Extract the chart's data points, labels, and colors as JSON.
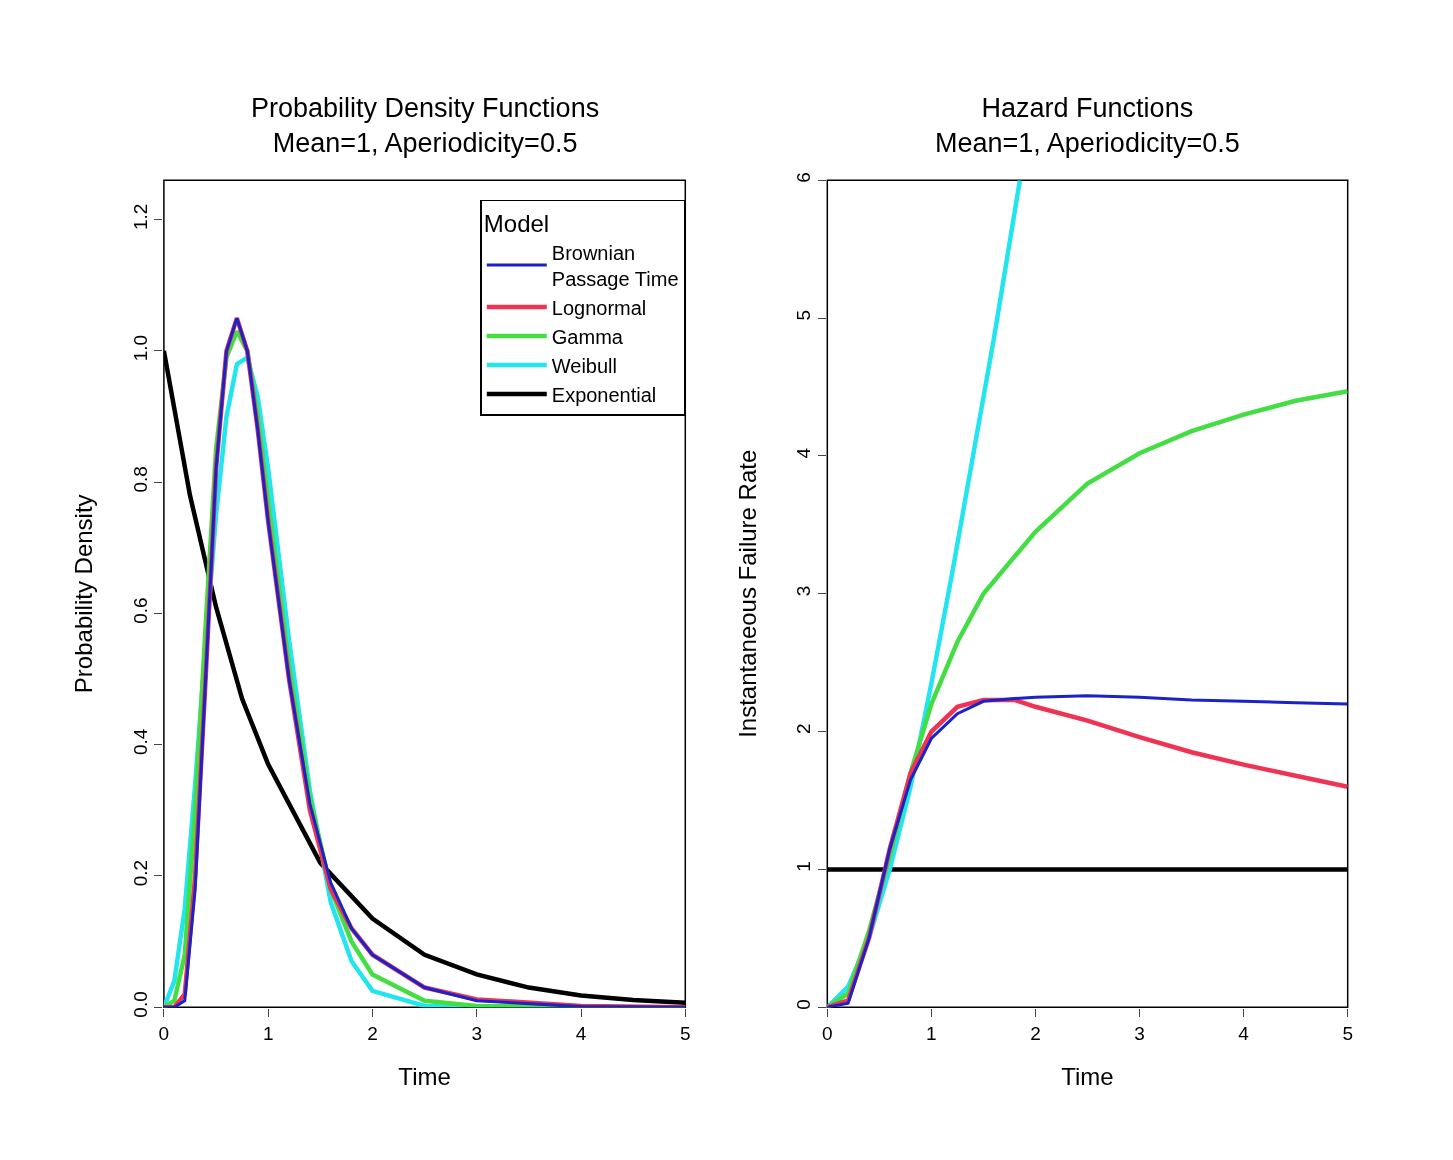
{
  "chart_data": [
    {
      "type": "line",
      "title": "Probability Density Functions\nMean=1, Aperiodicity=0.5",
      "xlabel": "Time",
      "ylabel": "Probability Density",
      "xlim": [
        0,
        5
      ],
      "ylim": [
        0,
        1.26
      ],
      "xticks": [
        0,
        1,
        2,
        3,
        4,
        5
      ],
      "yticks": [
        {
          "value": 0,
          "label": "0.0"
        },
        {
          "value": 0.2,
          "label": "0.2"
        },
        {
          "value": 0.4,
          "label": "0.4"
        },
        {
          "value": 0.6,
          "label": "0.6"
        },
        {
          "value": 0.8,
          "label": "0.8"
        },
        {
          "value": 1.0,
          "label": "1.0"
        },
        {
          "value": 1.2,
          "label": "1.2"
        }
      ],
      "grid": false,
      "legend": "top right",
      "legend_title": "Model",
      "marker": "none",
      "line_style": "solid",
      "x": [
        0,
        0.1,
        0.2,
        0.3,
        0.4,
        0.5,
        0.6,
        0.7,
        0.8,
        0.9,
        1.0,
        1.2,
        1.4,
        1.6,
        1.8,
        2.0,
        2.5,
        3,
        4,
        5
      ],
      "series": [
        {
          "name": "Brownian\nPassage Time",
          "color": "#1a23c8",
          "values": [
            0,
            0,
            0.01,
            0.18,
            0.5,
            0.82,
            1.0,
            1.05,
            1.0,
            0.88,
            0.74,
            0.5,
            0.31,
            0.19,
            0.12,
            0.08,
            0.03,
            0.01,
            0.001,
            0
          ]
        },
        {
          "name": "Lognormal",
          "color": "#ee3355",
          "values": [
            0,
            0,
            0.02,
            0.2,
            0.5,
            0.82,
            1.0,
            1.05,
            1.0,
            0.88,
            0.74,
            0.5,
            0.3,
            0.18,
            0.12,
            0.08,
            0.03,
            0.012,
            0.002,
            0
          ]
        },
        {
          "name": "Gamma",
          "color": "#44dd44",
          "values": [
            0,
            0.01,
            0.08,
            0.3,
            0.58,
            0.85,
            0.99,
            1.03,
            1.0,
            0.9,
            0.77,
            0.52,
            0.32,
            0.18,
            0.1,
            0.05,
            0.01,
            0.002,
            0,
            0
          ]
        },
        {
          "name": "Weibull",
          "color": "#22e5ee",
          "values": [
            0,
            0.04,
            0.15,
            0.34,
            0.55,
            0.75,
            0.9,
            0.98,
            0.99,
            0.93,
            0.82,
            0.56,
            0.33,
            0.16,
            0.07,
            0.025,
            0.002,
            0,
            0,
            0
          ]
        },
        {
          "name": "Exponential",
          "color": "#000000",
          "x": [
            0,
            0.25,
            0.5,
            0.75,
            1,
            1.5,
            2,
            2.5,
            3,
            3.5,
            4,
            4.5,
            5
          ],
          "values": [
            1,
            0.78,
            0.61,
            0.47,
            0.37,
            0.22,
            0.135,
            0.08,
            0.05,
            0.03,
            0.018,
            0.011,
            0.007
          ]
        }
      ]
    },
    {
      "type": "line",
      "title": "Hazard Functions\nMean=1, Aperiodicity=0.5",
      "xlabel": "Time",
      "ylabel": "Instantaneous Failure Rate",
      "xlim": [
        0,
        5
      ],
      "ylim": [
        0,
        6
      ],
      "xticks": [
        0,
        1,
        2,
        3,
        4,
        5
      ],
      "yticks": [
        0,
        1,
        2,
        3,
        4,
        5,
        6
      ],
      "grid": false,
      "marker": "none",
      "line_style": "solid",
      "series": [
        {
          "color": "#1a23c8",
          "x": [
            0,
            0.2,
            0.4,
            0.6,
            0.8,
            1,
            1.25,
            1.5,
            1.8,
            2,
            2.5,
            3,
            3.5,
            4,
            4.5,
            5
          ],
          "values": [
            0,
            0.03,
            0.5,
            1.15,
            1.65,
            1.95,
            2.13,
            2.22,
            2.24,
            2.25,
            2.26,
            2.25,
            2.23,
            2.22,
            2.21,
            2.2
          ]
        },
        {
          "color": "#ee3355",
          "x": [
            0,
            0.2,
            0.4,
            0.6,
            0.8,
            1,
            1.25,
            1.5,
            1.8,
            2,
            2.5,
            3,
            3.5,
            4,
            4.5,
            5
          ],
          "values": [
            0,
            0.05,
            0.5,
            1.15,
            1.7,
            2.0,
            2.18,
            2.23,
            2.23,
            2.18,
            2.08,
            1.96,
            1.85,
            1.76,
            1.68,
            1.6
          ]
        },
        {
          "color": "#44dd44",
          "x": [
            0,
            0.2,
            0.4,
            0.6,
            0.8,
            1,
            1.25,
            1.5,
            2,
            2.5,
            3,
            3.5,
            4,
            4.5,
            5
          ],
          "values": [
            0,
            0.1,
            0.55,
            1.1,
            1.7,
            2.2,
            2.65,
            3.0,
            3.45,
            3.8,
            4.02,
            4.18,
            4.3,
            4.4,
            4.47
          ]
        },
        {
          "color": "#22e5ee",
          "x": [
            0,
            0.2,
            0.4,
            0.6,
            0.8,
            1.0,
            1.2,
            1.4,
            1.6,
            1.85
          ],
          "values": [
            0,
            0.15,
            0.5,
            1.0,
            1.6,
            2.35,
            3.15,
            4.0,
            4.85,
            6.0
          ]
        },
        {
          "color": "#000000",
          "x": [
            0,
            5
          ],
          "values": [
            1,
            1
          ]
        }
      ]
    }
  ]
}
